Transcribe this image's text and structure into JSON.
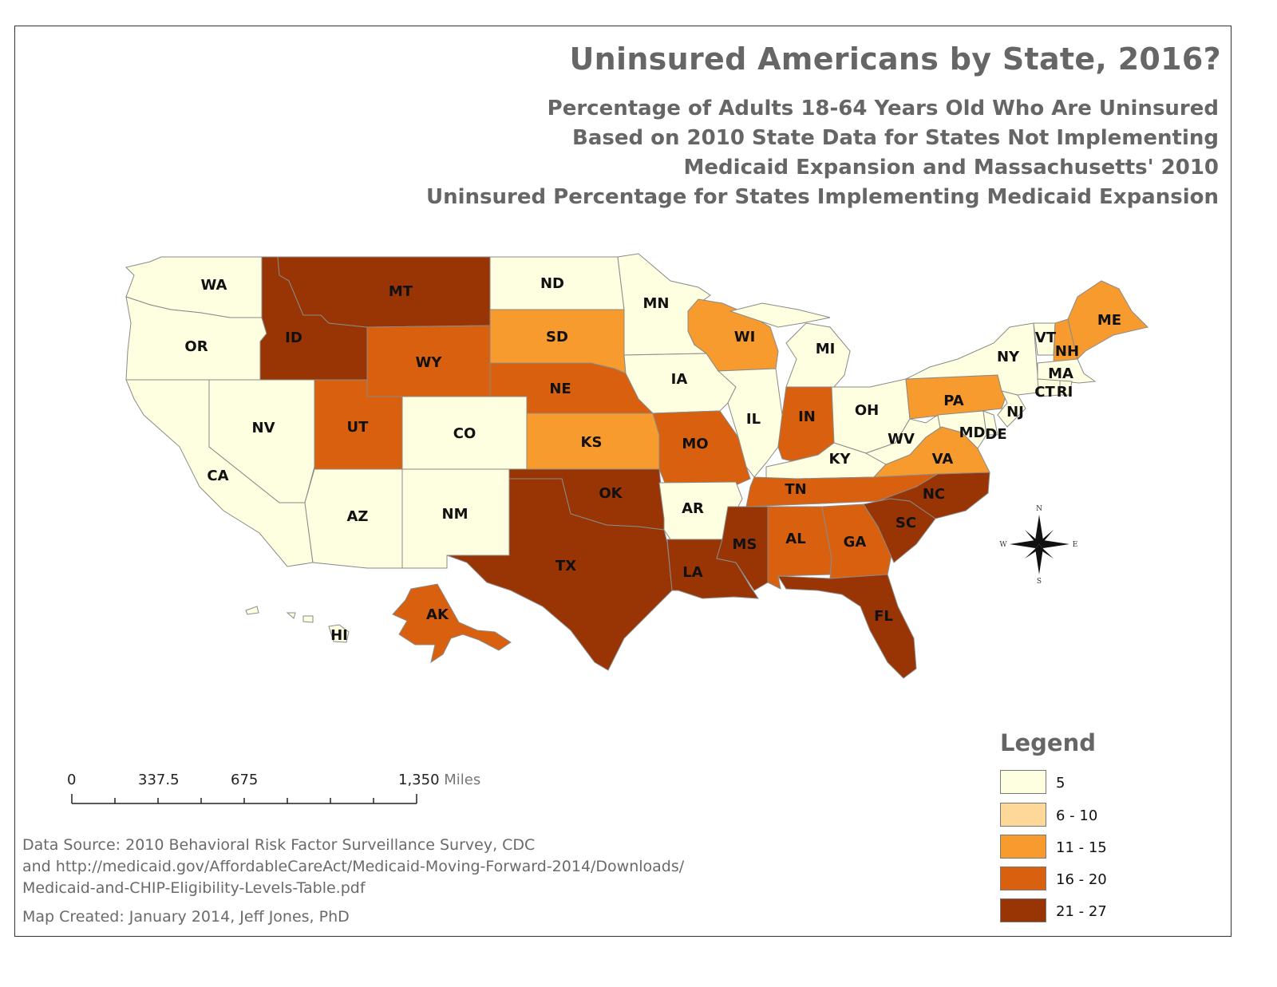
{
  "title": "Uninsured Americans by State, 2016?",
  "subtitle_lines": [
    "Percentage of Adults 18-64 Years Old Who Are Uninsured",
    "Based on 2010 State Data for States Not Implementing",
    "Medicaid Expansion and Massachusetts' 2010",
    "Uninsured Percentage for States Implementing Medicaid Expansion"
  ],
  "colors": {
    "c1": "#fefee0",
    "c2": "#fdd899",
    "c3": "#f89b2e",
    "c4": "#d8600f",
    "c5": "#993404"
  },
  "legend": {
    "title": "Legend",
    "items": [
      {
        "label": "5",
        "color": "#fefee0"
      },
      {
        "label": "6 - 10",
        "color": "#fdd899"
      },
      {
        "label": "11 - 15",
        "color": "#f89b2e"
      },
      {
        "label": "16 - 20",
        "color": "#d8600f"
      },
      {
        "label": "21 - 27",
        "color": "#993404"
      }
    ]
  },
  "states": {
    "WA": "WA",
    "OR": "OR",
    "CA": "CA",
    "NV": "NV",
    "ID": "ID",
    "MT": "MT",
    "WY": "WY",
    "UT": "UT",
    "AZ": "AZ",
    "CO": "CO",
    "NM": "NM",
    "ND": "ND",
    "SD": "SD",
    "NE": "NE",
    "KS": "KS",
    "OK": "OK",
    "TX": "TX",
    "MN": "MN",
    "IA": "IA",
    "MO": "MO",
    "AR": "AR",
    "LA": "LA",
    "WI": "WI",
    "IL": "IL",
    "MI": "MI",
    "IN": "IN",
    "OH": "OH",
    "KY": "KY",
    "TN": "TN",
    "MS": "MS",
    "AL": "AL",
    "GA": "GA",
    "FL": "FL",
    "SC": "SC",
    "NC": "NC",
    "VA": "VA",
    "WV": "WV",
    "PA": "PA",
    "NY": "NY",
    "VT": "VT",
    "NH": "NH",
    "ME": "ME",
    "MA": "MA",
    "CT": "CT",
    "RI": "RI",
    "NJ": "NJ",
    "DE": "DE",
    "MD": "MD",
    "AK": "AK",
    "HI": "HI"
  },
  "compass": {
    "n": "N",
    "s": "S",
    "e": "E",
    "w": "W"
  },
  "scale": {
    "ticks": [
      "0",
      "337.5",
      "675",
      "1,350"
    ],
    "unit": "Miles"
  },
  "source_lines": [
    "Data Source:  2010 Behavioral Risk Factor Surveillance Survey, CDC",
    "and http://medicaid.gov/AffordableCareAct/Medicaid-Moving-Forward-2014/Downloads/",
    "Medicaid-and-CHIP-Eligibility-Levels-Table.pdf"
  ],
  "credit": "Map Created:  January 2014, Jeff Jones, PhD"
}
